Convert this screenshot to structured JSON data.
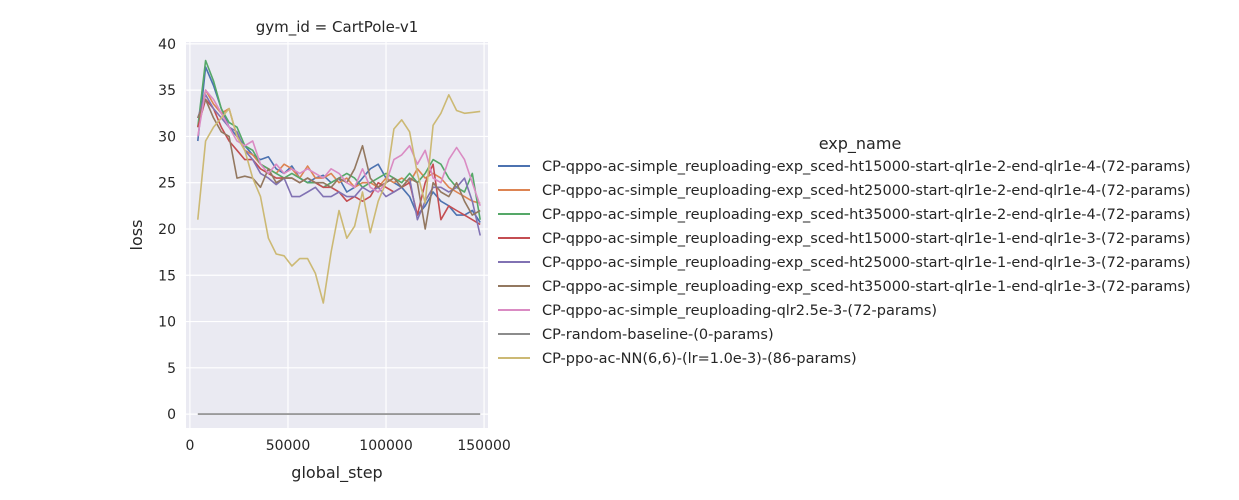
{
  "chart_data": {
    "type": "line",
    "title": "gym_id = CartPole-v1",
    "xlabel": "global_step",
    "ylabel": "loss",
    "xlim": [
      -2000,
      152000
    ],
    "ylim": [
      -1.5,
      40.2
    ],
    "xticks": [
      0,
      50000,
      100000,
      150000
    ],
    "xtick_labels": [
      "0",
      "50000",
      "100000",
      "150000"
    ],
    "yticks": [
      0,
      5,
      10,
      15,
      20,
      25,
      30,
      35,
      40
    ],
    "ytick_labels": [
      "0",
      "5",
      "10",
      "15",
      "20",
      "25",
      "30",
      "35",
      "40"
    ],
    "grid": true,
    "legend": {
      "title": "exp_name",
      "placement": "right"
    },
    "series": [
      {
        "name": "CP-qppo-ac-simple_reuploading-exp_sced-ht15000-start-qlr1e-2-end-qlr1e-4-(72-params)",
        "color": "#4c72b0",
        "x": [
          4000,
          8000,
          12000,
          16000,
          20000,
          24000,
          28000,
          32000,
          36000,
          40000,
          44000,
          48000,
          52000,
          56000,
          60000,
          64000,
          68000,
          72000,
          76000,
          80000,
          84000,
          88000,
          92000,
          96000,
          100000,
          104000,
          108000,
          112000,
          116000,
          120000,
          124000,
          128000,
          132000,
          136000,
          140000,
          144000,
          148000
        ],
        "y": [
          29.5,
          37.5,
          35.5,
          33.0,
          31.0,
          30.0,
          29.0,
          28.0,
          27.5,
          27.8,
          26.5,
          26.0,
          26.8,
          25.5,
          25.0,
          25.5,
          25.8,
          25.0,
          25.5,
          24.0,
          24.5,
          25.5,
          26.5,
          27.0,
          25.5,
          25.0,
          24.5,
          23.5,
          21.5,
          22.5,
          24.0,
          23.0,
          22.5,
          21.5,
          21.5,
          22.0,
          20.7
        ]
      },
      {
        "name": "CP-qppo-ac-simple_reuploading-exp_sced-ht25000-start-qlr1e-2-end-qlr1e-4-(72-params)",
        "color": "#dd8452",
        "x": [
          4000,
          8000,
          12000,
          16000,
          20000,
          24000,
          28000,
          32000,
          36000,
          40000,
          44000,
          48000,
          52000,
          56000,
          60000,
          64000,
          68000,
          72000,
          76000,
          80000,
          84000,
          88000,
          92000,
          96000,
          100000,
          104000,
          108000,
          112000,
          116000,
          120000,
          124000,
          128000,
          132000,
          136000,
          140000,
          144000,
          148000
        ],
        "y": [
          31.0,
          35.0,
          33.5,
          32.5,
          33.0,
          30.0,
          28.5,
          28.0,
          27.0,
          26.5,
          26.0,
          27.0,
          26.5,
          25.5,
          26.8,
          25.5,
          25.5,
          26.0,
          25.0,
          25.5,
          24.5,
          25.0,
          25.0,
          24.5,
          25.5,
          25.0,
          25.5,
          25.0,
          26.5,
          25.5,
          26.0,
          25.5,
          24.5,
          24.0,
          23.5,
          23.0,
          22.8
        ]
      },
      {
        "name": "CP-qppo-ac-simple_reuploading-exp_sced-ht35000-start-qlr1e-2-end-qlr1e-4-(72-params)",
        "color": "#55a868",
        "x": [
          4000,
          8000,
          12000,
          16000,
          20000,
          24000,
          28000,
          32000,
          36000,
          40000,
          44000,
          48000,
          52000,
          56000,
          60000,
          64000,
          68000,
          72000,
          76000,
          80000,
          84000,
          88000,
          92000,
          96000,
          100000,
          104000,
          108000,
          112000,
          116000,
          120000,
          124000,
          128000,
          132000,
          136000,
          140000,
          144000,
          148000
        ],
        "y": [
          31.0,
          38.2,
          36.0,
          33.0,
          31.5,
          31.0,
          29.0,
          28.5,
          27.0,
          26.5,
          26.0,
          25.5,
          26.0,
          25.5,
          25.0,
          25.0,
          24.5,
          25.0,
          25.5,
          26.0,
          25.5,
          24.5,
          25.0,
          25.5,
          26.0,
          25.5,
          25.0,
          26.0,
          25.0,
          26.0,
          27.5,
          27.0,
          25.5,
          24.5,
          24.0,
          26.0,
          21.0
        ]
      },
      {
        "name": "CP-qppo-ac-simple_reuploading-exp_sced-ht15000-start-qlr1e-1-end-qlr1e-3-(72-params)",
        "color": "#c44e52",
        "x": [
          4000,
          8000,
          12000,
          16000,
          20000,
          24000,
          28000,
          32000,
          36000,
          40000,
          44000,
          48000,
          52000,
          56000,
          60000,
          64000,
          68000,
          72000,
          76000,
          80000,
          84000,
          88000,
          92000,
          96000,
          100000,
          104000,
          108000,
          112000,
          116000,
          120000,
          124000,
          128000,
          132000,
          136000,
          140000,
          144000,
          148000
        ],
        "y": [
          31.0,
          34.0,
          33.0,
          31.0,
          29.5,
          28.5,
          27.5,
          27.5,
          26.5,
          26.0,
          25.5,
          25.5,
          25.5,
          25.0,
          25.5,
          25.0,
          24.5,
          24.5,
          24.0,
          23.0,
          23.5,
          23.0,
          23.5,
          25.0,
          24.5,
          24.0,
          24.5,
          25.0,
          21.5,
          25.0,
          27.0,
          21.0,
          22.5,
          22.0,
          21.5,
          21.0,
          20.5
        ]
      },
      {
        "name": "CP-qppo-ac-simple_reuploading-exp_sced-ht25000-start-qlr1e-1-end-qlr1e-3-(72-params)",
        "color": "#8172b3",
        "x": [
          4000,
          8000,
          12000,
          16000,
          20000,
          24000,
          28000,
          32000,
          36000,
          40000,
          44000,
          48000,
          52000,
          56000,
          60000,
          64000,
          68000,
          72000,
          76000,
          80000,
          84000,
          88000,
          92000,
          96000,
          100000,
          104000,
          108000,
          112000,
          116000,
          120000,
          124000,
          128000,
          132000,
          136000,
          140000,
          144000,
          148000
        ],
        "y": [
          32.0,
          34.5,
          33.0,
          32.0,
          31.0,
          30.5,
          28.5,
          27.5,
          26.0,
          25.5,
          24.8,
          25.5,
          23.5,
          23.5,
          24.0,
          24.5,
          23.5,
          23.5,
          24.0,
          23.5,
          23.5,
          24.5,
          24.0,
          24.5,
          23.5,
          24.0,
          24.5,
          25.5,
          21.0,
          23.0,
          24.5,
          24.5,
          24.0,
          24.5,
          25.5,
          23.0,
          19.3
        ]
      },
      {
        "name": "CP-qppo-ac-simple_reuploading-exp_sced-ht35000-start-qlr1e-1-end-qlr1e-3-(72-params)",
        "color": "#937860",
        "x": [
          4000,
          8000,
          12000,
          16000,
          20000,
          24000,
          28000,
          32000,
          36000,
          40000,
          44000,
          48000,
          52000,
          56000,
          60000,
          64000,
          68000,
          72000,
          76000,
          80000,
          84000,
          88000,
          92000,
          96000,
          100000,
          104000,
          108000,
          112000,
          116000,
          120000,
          124000,
          128000,
          132000,
          136000,
          140000,
          144000,
          148000
        ],
        "y": [
          32.0,
          34.0,
          32.0,
          30.5,
          30.0,
          25.5,
          25.7,
          25.5,
          24.5,
          26.5,
          25.0,
          25.5,
          25.5,
          25.0,
          25.5,
          25.0,
          25.0,
          24.5,
          25.5,
          25.0,
          26.5,
          29.0,
          25.5,
          24.5,
          25.0,
          25.5,
          24.5,
          25.5,
          25.0,
          20.0,
          25.0,
          24.0,
          23.5,
          25.0,
          23.0,
          21.5,
          22.0
        ]
      },
      {
        "name": "CP-qppo-ac-simple_reuploading-qlr2.5e-3-(72-params)",
        "color": "#da8bc3",
        "x": [
          4000,
          8000,
          12000,
          16000,
          20000,
          24000,
          28000,
          32000,
          36000,
          40000,
          44000,
          48000,
          52000,
          56000,
          60000,
          64000,
          68000,
          72000,
          76000,
          80000,
          84000,
          88000,
          92000,
          96000,
          100000,
          104000,
          108000,
          112000,
          116000,
          120000,
          124000,
          128000,
          132000,
          136000,
          140000,
          144000,
          148000
        ],
        "y": [
          30.0,
          35.0,
          34.0,
          32.5,
          31.0,
          29.5,
          29.0,
          29.5,
          27.0,
          26.0,
          27.0,
          26.0,
          26.5,
          26.0,
          26.5,
          26.0,
          25.5,
          26.5,
          26.0,
          25.0,
          24.5,
          26.5,
          24.5,
          24.0,
          25.0,
          27.5,
          28.0,
          29.0,
          27.0,
          28.5,
          25.5,
          25.0,
          27.5,
          28.8,
          27.5,
          25.0,
          22.5
        ]
      },
      {
        "name": "CP-random-baseline-(0-params)",
        "color": "#8c8c8c",
        "x": [
          4000,
          148000
        ],
        "y": [
          0.0,
          0.0
        ]
      },
      {
        "name": "CP-ppo-ac-NN(6,6)-(lr=1.0e-3)-(86-params)",
        "color": "#ccb974",
        "x": [
          4000,
          8000,
          12000,
          16000,
          20000,
          24000,
          28000,
          32000,
          36000,
          40000,
          44000,
          48000,
          52000,
          56000,
          60000,
          64000,
          68000,
          72000,
          76000,
          80000,
          84000,
          88000,
          92000,
          96000,
          100000,
          104000,
          108000,
          112000,
          116000,
          120000,
          124000,
          128000,
          132000,
          136000,
          140000,
          144000,
          148000
        ],
        "y": [
          21.0,
          29.5,
          31.0,
          32.0,
          33.0,
          30.0,
          28.5,
          25.5,
          23.5,
          19.0,
          17.3,
          17.1,
          16.0,
          16.8,
          16.8,
          15.2,
          12.0,
          17.5,
          22.0,
          19.0,
          20.3,
          24.0,
          19.6,
          23.0,
          25.0,
          30.8,
          31.8,
          30.5,
          26.0,
          22.8,
          31.2,
          32.5,
          34.5,
          32.8,
          32.5,
          32.6,
          32.7
        ]
      }
    ]
  }
}
